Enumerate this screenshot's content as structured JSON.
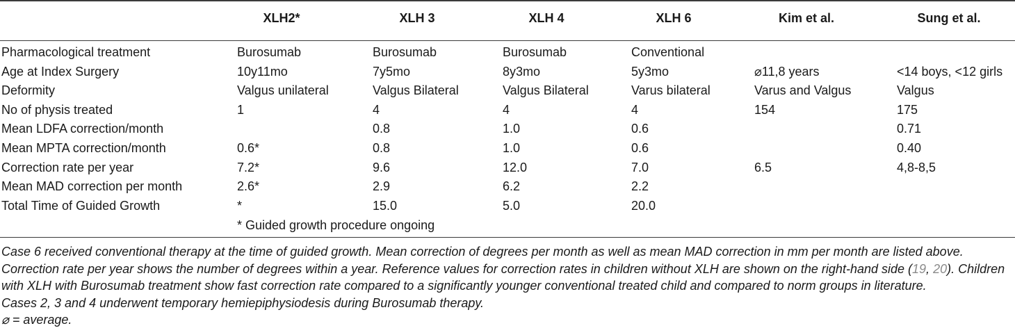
{
  "table": {
    "headers": [
      "XLH2*",
      "XLH 3",
      "XLH 4",
      "XLH 6",
      "Kim et al.",
      "Sung et al."
    ],
    "rows": [
      {
        "label": "Pharmacological treatment",
        "cells": [
          "Burosumab",
          "Burosumab",
          "Burosumab",
          "Conventional",
          "",
          ""
        ]
      },
      {
        "label": "Age at Index Surgery",
        "cells": [
          "10y11mo",
          "7y5mo",
          "8y3mo",
          "5y3mo",
          "⌀11,8 years",
          "<14 boys, <12 girls"
        ]
      },
      {
        "label": "Deformity",
        "cells": [
          "Valgus unilateral",
          "Valgus Bilateral",
          "Valgus Bilateral",
          "Varus bilateral",
          "Varus and Valgus",
          "Valgus"
        ]
      },
      {
        "label": "No of physis treated",
        "cells": [
          "1",
          "4",
          "4",
          "4",
          "154",
          "175"
        ]
      },
      {
        "label": "Mean LDFA correction/month",
        "cells": [
          "",
          "0.8",
          "1.0",
          "0.6",
          "",
          "0.71"
        ]
      },
      {
        "label": "Mean MPTA correction/month",
        "cells": [
          "0.6*",
          "0.8",
          "1.0",
          "0.6",
          "",
          "0.40"
        ]
      },
      {
        "label": "Correction rate per year",
        "cells": [
          "7.2*",
          "9.6",
          "12.0",
          "7.0",
          "6.5",
          "4,8-8,5"
        ]
      },
      {
        "label": "Mean MAD correction per month",
        "cells": [
          "2.6*",
          "2.9",
          "6.2",
          "2.2",
          "",
          ""
        ]
      },
      {
        "label": "Total Time of Guided Growth",
        "cells": [
          "*",
          "15.0",
          "5.0",
          "20.0",
          "",
          ""
        ]
      }
    ],
    "footnote": "* Guided growth procedure ongoing"
  },
  "notes": {
    "p1_before_ref": "Case 6 received conventional therapy at the time of guided growth. Mean correction of degrees per month as well as mean MAD correction in mm per month are listed above. Correction rate per year shows the number of degrees within a year. Reference values for correction rates in children without XLH are shown on the right-hand side (",
    "ref1": "19",
    "ref_sep": ", ",
    "ref2": "20",
    "p1_after_ref": "). Children with XLH with Burosumab treatment show fast correction rate compared to a significantly younger conventional treated child and compared to norm groups in literature.",
    "p2": "Cases 2, 3 and 4 underwent temporary hemiepiphysiodesis during Burosumab therapy.",
    "p3": "⌀ = average."
  }
}
